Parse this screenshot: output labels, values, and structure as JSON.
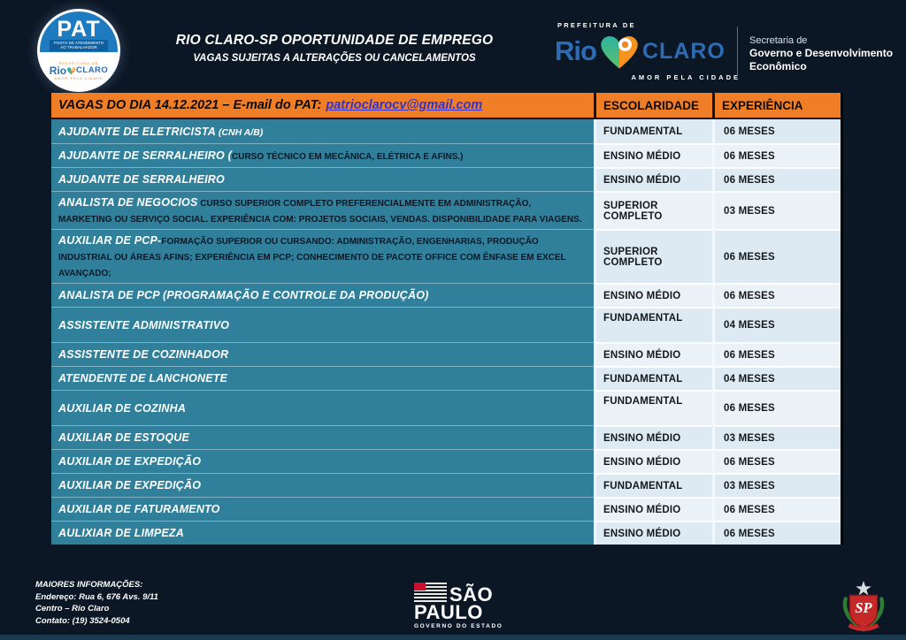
{
  "colors": {
    "background": "#0C1725",
    "header_orange": "#F07E26",
    "job_teal": "#30809B",
    "cell_light": "#DEEAF3",
    "cell_light_alt": "#EAF2F8",
    "email_link_blue": "#3632C8",
    "logo_blue": "#2B6CB4",
    "pat_blue": "#1E7BC0",
    "pin_orange": "#F6921E",
    "heart_teal": "#2DB3A0"
  },
  "header": {
    "pat_badge": {
      "title": "PAT",
      "sub1": "POSTO DE ATENDIMENTO",
      "sub2": "AO TRABALHADOR",
      "mini_top": "PREFEITURA DE",
      "rio": "Rio",
      "claro": "CLARO",
      "tagline": "AMOR PELA CIDADE"
    },
    "title_line1": "RIO CLARO-SP OPORTUNIDADE DE EMPREGO",
    "title_line2": "VAGAS SUJEITAS A ALTERAÇÕES OU CANCELAMENTOS",
    "prefeitura_logo": {
      "top": "PREFEITURA DE",
      "rio": "Rio",
      "claro": "CLARO",
      "tagline": "AMOR PELA CIDADE"
    },
    "secretaria": {
      "line1": "Secretaria de",
      "line2": "Governo e Desenvolvimento",
      "line3": "Econômico"
    }
  },
  "table": {
    "header": {
      "title": "VAGAS DO DIA 14.12.2021 – E-mail do PAT:",
      "email": "patrioclarocv@gmail.com",
      "col_escolaridade": "ESCOLARIDADE",
      "col_experiencia": "EXPERIÊNCIA"
    },
    "rows": [
      {
        "job": "AJUDANTE DE ELETRICISTA",
        "note": " (CNH A/B)",
        "note_style": "white",
        "escolaridade": "FUNDAMENTAL",
        "experiencia": "06 MESES"
      },
      {
        "job": "AJUDANTE DE SERRALHEIRO (",
        "note": "CURSO TÉCNICO EM MECÂNICA, ELÉTRICA E AFINS.)",
        "note_style": "dark",
        "escolaridade": "ENSINO MÉDIO",
        "experiencia": "06 MESES"
      },
      {
        "job": "AJUDANTE DE SERRALHEIRO",
        "escolaridade": "ENSINO MÉDIO",
        "experiencia": "06 MESES"
      },
      {
        "job": "ANALISTA DE NEGOCIOS",
        "note": " CURSO SUPERIOR COMPLETO PREFERENCIALMENTE EM ADMINISTRAÇÃO, MARKETING OU SERVIÇO SOCIAL. EXPERIÊNCIA COM: PROJETOS SOCIAIS, VENDAS. DISPONIBILIDADE PARA VIAGENS.",
        "note_style": "dark",
        "escolaridade": "SUPERIOR COMPLETO",
        "experiencia": "03 MESES"
      },
      {
        "job": "AUXILIAR DE PCP-",
        "note": "FORMAÇÃO SUPERIOR OU CURSANDO: ADMINISTRAÇÃO, ENGENHARIAS, PRODUÇÃO INDUSTRIAL OU ÁREAS AFINS; EXPERIÊNCIA EM PCP; CONHECIMENTO DE PACOTE OFFICE COM ÊNFASE EM EXCEL AVANÇADO;",
        "note_style": "dark",
        "escolaridade": "SUPERIOR COMPLETO",
        "experiencia": "06 MESES"
      },
      {
        "job": "ANALISTA DE PCP (PROGRAMAÇÃO E CONTROLE DA PRODUÇÃO)",
        "escolaridade": "ENSINO MÉDIO",
        "experiencia": "06 MESES"
      },
      {
        "job": "ASSISTENTE ADMINISTRATIVO",
        "escolaridade": "FUNDAMENTAL",
        "experiencia": "04 MESES",
        "tall": true
      },
      {
        "job": "ASSISTENTE DE COZINHADOR",
        "escolaridade": "ENSINO MÉDIO",
        "experiencia": "06 MESES"
      },
      {
        "job": "ATENDENTE DE LANCHONETE",
        "escolaridade": "FUNDAMENTAL",
        "experiencia": "04 MESES"
      },
      {
        "job": "AUXILIAR DE COZINHA",
        "escolaridade": "FUNDAMENTAL",
        "experiencia": "06 MESES",
        "tall": true
      },
      {
        "job": "AUXILIAR DE ESTOQUE",
        "escolaridade": "ENSINO MÉDIO",
        "experiencia": "03 MESES"
      },
      {
        "job": "AUXILIAR DE EXPEDIÇÃO",
        "escolaridade": "ENSINO MÉDIO",
        "experiencia": "06 MESES"
      },
      {
        "job": "AUXILIAR DE EXPEDIÇÃO",
        "escolaridade": "FUNDAMENTAL",
        "experiencia": "03 MESES"
      },
      {
        "job": "AUXILIAR DE FATURAMENTO",
        "escolaridade": "ENSINO MÉDIO",
        "experiencia": "06 MESES"
      },
      {
        "job": "AULIXIAR DE LIMPEZA",
        "escolaridade": "ENSINO MÉDIO",
        "experiencia": "06 MESES"
      }
    ]
  },
  "footer": {
    "info": [
      "MAIORES INFORMAÇÕES:",
      "Endereço: Rua 6, 676 Avs. 9/11",
      "Centro – Rio Claro",
      "Contato: (19) 3524-0504"
    ],
    "sao_paulo_logo": {
      "line1": "SÃO",
      "line2": "PAULO",
      "line3": "GOVERNO DO ESTADO"
    },
    "seal_text": "SP"
  }
}
